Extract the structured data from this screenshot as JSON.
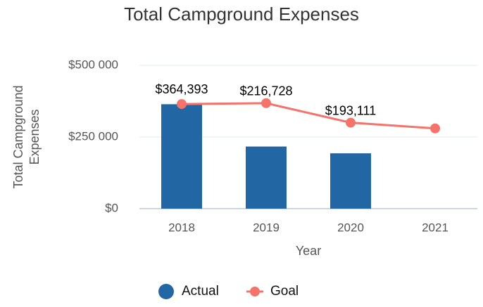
{
  "chart_data": {
    "type": "bar_line",
    "title": "Total Campground Expenses",
    "x_label": "Year",
    "y_label": [
      "Total Campground",
      "Expenses"
    ],
    "categories": [
      "2018",
      "2019",
      "2020",
      "2021"
    ],
    "series": [
      {
        "name": "Actual",
        "type": "bar",
        "color": "#2266a4",
        "values": [
          364393,
          216728,
          193111,
          null
        ],
        "value_labels": [
          "$364,393",
          "$216,728",
          "$193,111",
          null
        ]
      },
      {
        "name": "Goal",
        "type": "line",
        "color": "#f4736b",
        "values": [
          365000,
          368000,
          300000,
          280000
        ]
      }
    ],
    "ylim": [
      0,
      500000
    ],
    "yticks": [
      {
        "value": 0,
        "label": "$0"
      },
      {
        "value": 250000,
        "label": "$250 000"
      },
      {
        "value": 500000,
        "label": "$500 000"
      }
    ],
    "grid": true,
    "legend": "bottom"
  }
}
